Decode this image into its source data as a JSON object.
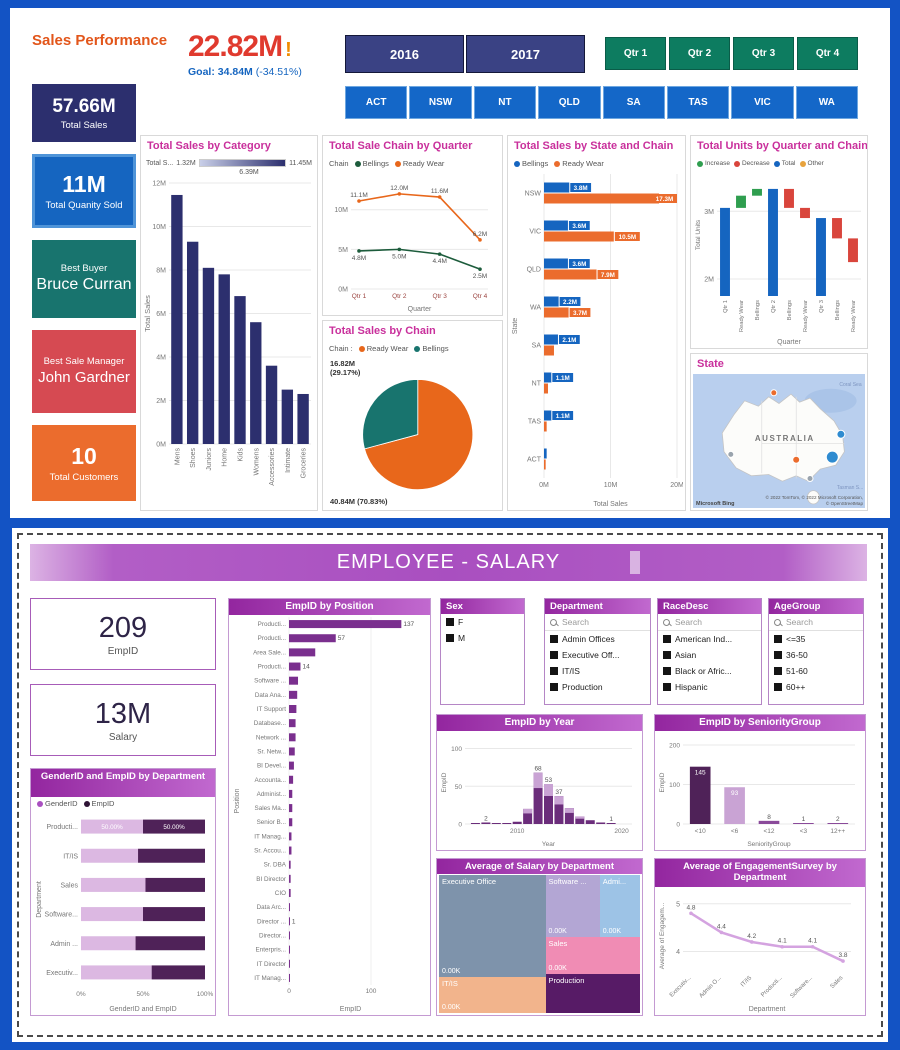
{
  "colors": {
    "frame_blue": "#1353c4",
    "title_orange": "#e2561b",
    "kpi_red": "#e03a2e",
    "goal_blue": "#1565c0",
    "chart_title_pink": "#c9309c",
    "purple_theme": "#a238b8"
  },
  "sales_dashboard": {
    "title": "Sales Performance",
    "kpi": {
      "value": "22.82M",
      "alert": "!",
      "goal_label": "Goal:",
      "goal_value": "34.84M",
      "goal_delta": "(-34.51%)"
    },
    "year_buttons": [
      "2016",
      "2017"
    ],
    "quarter_buttons": [
      "Qtr 1",
      "Qtr 2",
      "Qtr 3",
      "Qtr 4"
    ],
    "state_buttons": [
      "ACT",
      "NSW",
      "NT",
      "QLD",
      "SA",
      "TAS",
      "VIC",
      "WA"
    ],
    "cards": [
      {
        "value": "57.66M",
        "label": "Total Sales",
        "color": "#2c2f6e"
      },
      {
        "value": "11M",
        "label": "Total Quanity Sold",
        "color": "#1565c0",
        "border": "#4f94d8"
      },
      {
        "top_label": "Best Buyer",
        "value": "Bruce Curran",
        "color": "#18746e"
      },
      {
        "top_label": "Best Sale Manager",
        "value": "John Gardner",
        "color": "#d64a52"
      },
      {
        "value": "10",
        "label": "Total Customers",
        "color": "#eb6c2d"
      }
    ],
    "map": {
      "title": "State",
      "country_label": "AUSTRALIA",
      "sea_label_1": "Coral Sea",
      "sea_label_2": "Tasman S...",
      "brand": "Microsoft Bing",
      "attribution_line1": "© 2022 TomTom, © 2022 Microsoft Corporation,",
      "attribution_line2": "© OpenStreetMap"
    }
  },
  "employee_dashboard": {
    "title": "EMPLOYEE - SALARY",
    "kpis": [
      {
        "value": "209",
        "label": "EmpID"
      },
      {
        "value": "13M",
        "label": "Salary"
      }
    ],
    "slicers": [
      {
        "title": "Sex",
        "items": [
          "F",
          "M"
        ]
      },
      {
        "title": "Department",
        "search_placeholder": "Search",
        "items": [
          "Admin Offices",
          "Executive Off...",
          "IT/IS",
          "Production"
        ]
      },
      {
        "title": "RaceDesc",
        "search_placeholder": "Search",
        "items": [
          "American Ind...",
          "Asian",
          "Black or Afric...",
          "Hispanic"
        ]
      },
      {
        "title": "AgeGroup",
        "search_placeholder": "Search",
        "items": [
          "<=35",
          "36-50",
          "51-60",
          "60++"
        ]
      }
    ]
  },
  "chart_data": [
    {
      "id": "total-sales-by-category",
      "type": "bar",
      "title": "Total Sales by Category",
      "gradient_legend": {
        "label": "Total S...",
        "min": "1.32M",
        "mid": "6.39M",
        "max": "11.45M",
        "from": "#c9cfe8",
        "to": "#2c2f6e"
      },
      "categories": [
        "Mens",
        "Shoes",
        "Juniors",
        "Home",
        "Kids",
        "Womens",
        "Accessories",
        "Intimate",
        "Groceries"
      ],
      "values": [
        11.45,
        9.3,
        8.1,
        7.8,
        6.8,
        5.6,
        3.6,
        2.5,
        2.3
      ],
      "ylim": [
        0,
        12
      ],
      "yticks": [
        "0M",
        "2M",
        "4M",
        "6M",
        "8M",
        "10M",
        "12M"
      ],
      "ylabel": "Total Sales",
      "bar_color": "#2c2f6e"
    },
    {
      "id": "total-sale-chain-by-quarter",
      "type": "line",
      "title": "Total Sale Chain by Quarter",
      "legend_title": "Chain",
      "x": [
        "Qtr 1",
        "Qtr 2",
        "Qtr 3",
        "Qtr 4"
      ],
      "series": [
        {
          "name": "Bellings",
          "color": "#1d5c3c",
          "values": [
            4.8,
            5.0,
            4.4,
            2.5
          ],
          "labels": [
            "4.8M",
            "5.0M",
            "4.4M",
            "2.5M"
          ],
          "label_below": true
        },
        {
          "name": "Ready Wear",
          "color": "#e8671b",
          "values": [
            11.1,
            12.0,
            11.6,
            6.2
          ],
          "labels": [
            "11.1M",
            "12.0M",
            "11.6M",
            "6.2M"
          ]
        }
      ],
      "ylim": [
        0,
        13.5
      ],
      "yticks": [
        "0M",
        "5M",
        "10M"
      ],
      "xlabel": "Quarter",
      "xtick_color": "#9c4440"
    },
    {
      "id": "total-sales-by-chain",
      "type": "pie",
      "title": "Total Sales by Chain",
      "legend_title": "Chain :",
      "slices": [
        {
          "name": "Ready Wear",
          "color": "#e8671b",
          "pct": 70.83,
          "label": "40.84M (70.83%)"
        },
        {
          "name": "Bellings",
          "color": "#18746e",
          "pct": 29.17,
          "label_lines": [
            "16.82M",
            "(29.17%)"
          ]
        }
      ]
    },
    {
      "id": "total-sales-by-state-and-chain",
      "type": "hbar-grouped",
      "title": "Total Sales by State and Chain",
      "categories": [
        "NSW",
        "VIC",
        "QLD",
        "WA",
        "SA",
        "NT",
        "TAS",
        "ACT"
      ],
      "series": [
        {
          "name": "Bellings",
          "color": "#1565c0",
          "values": [
            3.8,
            3.6,
            3.6,
            2.2,
            2.1,
            1.1,
            1.1,
            0.4
          ],
          "labels": [
            "3.8M",
            "3.6M",
            "3.6M",
            "2.2M",
            "2.1M",
            "1.1M",
            "1.1M",
            ""
          ]
        },
        {
          "name": "Ready Wear",
          "color": "#eb6c2d",
          "values": [
            17.3,
            10.5,
            7.9,
            3.7,
            1.5,
            0.6,
            0.4,
            0.25
          ],
          "labels": [
            "17.3M",
            "10.5M",
            "7.9M",
            "3.7M",
            "",
            "",
            "",
            ""
          ]
        }
      ],
      "xlim": [
        0,
        20
      ],
      "xticks": [
        "0M",
        "10M",
        "20M"
      ],
      "xlabel": "Total Sales",
      "ylabel": "State"
    },
    {
      "id": "total-units-by-quarter-and-chain",
      "type": "waterfall",
      "title": "Total Units by Quarter and Chain",
      "legend": [
        {
          "name": "Increase",
          "color": "#2f9e4f"
        },
        {
          "name": "Decrease",
          "color": "#d9453c"
        },
        {
          "name": "Total",
          "color": "#1565c0"
        },
        {
          "name": "Other",
          "color": "#e8a33d"
        }
      ],
      "colors": {
        "increase": "#2f9e4f",
        "decrease": "#d9453c",
        "total": "#1565c0",
        "other": "#e8a33d"
      },
      "steps": [
        {
          "label": "Qtr 1",
          "kind": "total",
          "value": 3.05
        },
        {
          "label": "Ready Wear",
          "kind": "delta",
          "delta": 0.18
        },
        {
          "label": "Bellings",
          "kind": "delta",
          "delta": 0.1
        },
        {
          "label": "Qtr 2",
          "kind": "total",
          "value": 3.33
        },
        {
          "label": "Bellings",
          "kind": "delta",
          "delta": -0.28
        },
        {
          "label": "Ready Wear",
          "kind": "delta",
          "delta": -0.15
        },
        {
          "label": "Qtr 3",
          "kind": "total",
          "value": 2.9
        },
        {
          "label": "Bellings",
          "kind": "delta",
          "delta": -0.3
        },
        {
          "label": "Ready Wear",
          "kind": "delta",
          "delta": -0.35
        }
      ],
      "ylim": [
        1.75,
        3.55
      ],
      "yticks": [
        "2M",
        "3M"
      ],
      "ylabel": "Total Units",
      "xlabel": "Quarter"
    },
    {
      "id": "genderid-and-empid-by-department",
      "type": "stacked100",
      "title": "GenderID and EmpID by Department",
      "legend": [
        {
          "name": "GenderID",
          "color": "#a94fc0"
        },
        {
          "name": "EmpID",
          "color": "#2e1335"
        }
      ],
      "categories": [
        "Producti...",
        "IT/IS",
        "Sales",
        "Software...",
        "Admin ...",
        "Executiv..."
      ],
      "series": [
        {
          "name": "GenderID",
          "color": "#dcb8e2",
          "values": [
            50,
            46,
            52,
            50,
            44,
            57
          ],
          "labels": [
            "50.00%",
            "",
            "",
            "",
            "",
            ""
          ]
        },
        {
          "name": "EmpID",
          "color": "#4f2258",
          "values": [
            50,
            54,
            48,
            50,
            56,
            43
          ],
          "labels": [
            "50.00%",
            "",
            "",
            "",
            "",
            ""
          ]
        }
      ],
      "xticks": [
        "0%",
        "50%",
        "100%"
      ],
      "xlabel": "GenderID and EmpID",
      "ylabel": "Department"
    },
    {
      "id": "empid-by-position",
      "type": "hbar",
      "title": "EmpID by Position",
      "categories": [
        "Producti...",
        "Producti...",
        "Area Sale...",
        "Producti...",
        "Software ...",
        "Data Ana...",
        "IT Support",
        "Database...",
        "Network ...",
        "Sr. Netw...",
        "BI Devel...",
        "Accounta...",
        "Administ...",
        "Sales Ma...",
        "Senior B...",
        "IT Manag...",
        "Sr. Accou...",
        "Sr. DBA",
        "BI Director",
        "CIO",
        "Data Arc...",
        "Director ...",
        "Director...",
        "Enterpris...",
        "IT Director",
        "IT Manag..."
      ],
      "values": [
        137,
        57,
        32,
        14,
        11,
        10,
        9,
        8,
        8,
        7,
        6,
        5,
        4,
        4,
        4,
        3,
        3,
        2,
        2,
        2,
        1,
        1,
        1,
        1,
        1,
        1
      ],
      "labels": [
        "137",
        "57",
        "",
        "14",
        "",
        "",
        "",
        "",
        "",
        "",
        "",
        "",
        "",
        "",
        "",
        "",
        "",
        "",
        "",
        "",
        "",
        "1",
        "",
        "",
        "",
        ""
      ],
      "xlim": [
        0,
        150
      ],
      "xticks": [
        "0",
        "100"
      ],
      "xlabel": "EmpID",
      "ylabel": "Position",
      "bar_color": "#7a2f8e"
    },
    {
      "id": "empid-by-year",
      "type": "column",
      "title": "EmpID by Year",
      "x": [
        2006,
        2007,
        2008,
        2009,
        2010,
        2011,
        2012,
        2013,
        2014,
        2015,
        2016,
        2017,
        2018,
        2019
      ],
      "x_numeric": true,
      "values": [
        1,
        2,
        1,
        1,
        3,
        20,
        68,
        53,
        37,
        21,
        10,
        5,
        2,
        1
      ],
      "labels": [
        "",
        "2",
        "",
        "",
        "",
        "",
        "68",
        "53",
        "37",
        "",
        "",
        "",
        "",
        "1"
      ],
      "ylim": [
        0,
        110
      ],
      "yticks": [
        "0",
        "50",
        "100"
      ],
      "xticks": [
        "2010",
        "2020"
      ],
      "xlabel": "Year",
      "ylabel": "EmpID",
      "bar_color": "#6b2d7b",
      "bar_color_light": "#c9a3d4"
    },
    {
      "id": "empid-by-senioritygroup",
      "type": "column",
      "title": "EmpID by SeniorityGroup",
      "x": [
        "<10",
        "<6",
        "<12",
        "<3",
        "12++"
      ],
      "values": [
        145,
        93,
        8,
        1,
        2
      ],
      "labels": [
        "145",
        "93",
        "8",
        "1",
        "2"
      ],
      "labels_inside": true,
      "ylim": [
        0,
        210
      ],
      "yticks": [
        "0",
        "100",
        "200"
      ],
      "xlabel": "SeniorityGroup",
      "ylabel": "EmpID",
      "bar_colors": [
        "#4f2258",
        "#c9a3d4",
        "#8a4a9a",
        "#8a4a9a",
        "#8a4a9a"
      ]
    },
    {
      "id": "average-of-salary-by-department",
      "type": "treemap",
      "title": "Average of Salary by Department",
      "tiles": [
        {
          "name": "Executive Office",
          "value_label": "0.00K",
          "color": "#7e93ab",
          "x": 0,
          "y": 0,
          "w": 53,
          "h": 74
        },
        {
          "name": "IT/IS",
          "value_label": "0.00K",
          "color": "#f2b48c",
          "x": 0,
          "y": 74,
          "w": 53,
          "h": 26
        },
        {
          "name": "Software ...",
          "value_label": "0.00K",
          "color": "#b3a6d4",
          "x": 53,
          "y": 0,
          "w": 27,
          "h": 45
        },
        {
          "name": "Admi...",
          "value_label": "0.00K",
          "color": "#9dc3e6",
          "x": 80,
          "y": 0,
          "w": 20,
          "h": 45
        },
        {
          "name": "Sales",
          "value_label": "0.00K",
          "color": "#f08cb4",
          "x": 53,
          "y": 45,
          "w": 47,
          "h": 27
        },
        {
          "name": "Production",
          "value_label": "",
          "color": "#571b66",
          "x": 53,
          "y": 72,
          "w": 47,
          "h": 28
        }
      ]
    },
    {
      "id": "average-of-engagementsurvey-by-department",
      "type": "line",
      "title": "Average of EngagementSurvey by Department",
      "x": [
        "Executiv...",
        "Admin O...",
        "IT/IS",
        "Producti...",
        "Software...",
        "Sales"
      ],
      "series": [
        {
          "name": "Average of EngagementSurvey",
          "color": "#d4a3e0",
          "values": [
            4.8,
            4.4,
            4.2,
            4.1,
            4.1,
            3.8
          ],
          "labels": [
            "4.8",
            "4.4",
            "4.2",
            "4.1",
            "4.1",
            "3.8"
          ]
        }
      ],
      "ylim": [
        3.55,
        5.1
      ],
      "yticks": [
        "4",
        "5"
      ],
      "xlabel": "Department",
      "ylabel": "Average of Engagem...",
      "rotate_x": true,
      "line_width": 2.5
    }
  ]
}
